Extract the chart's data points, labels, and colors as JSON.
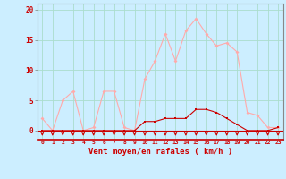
{
  "x": [
    0,
    1,
    2,
    3,
    4,
    5,
    6,
    7,
    8,
    9,
    10,
    11,
    12,
    13,
    14,
    15,
    16,
    17,
    18,
    19,
    20,
    21,
    22,
    23
  ],
  "rafales": [
    2,
    0,
    5,
    6.5,
    0,
    0.5,
    6.5,
    6.5,
    0.5,
    0,
    8.5,
    11.5,
    16,
    11.5,
    16.5,
    18.5,
    16,
    14,
    14.5,
    13,
    3,
    2.5,
    0.5,
    0.5
  ],
  "moyen": [
    0,
    0,
    0,
    0,
    0,
    0,
    0,
    0,
    0,
    0,
    1.5,
    1.5,
    2,
    2,
    2,
    3.5,
    3.5,
    3,
    2,
    1,
    0,
    0,
    0,
    0.5
  ],
  "color_rafales": "#ffaaaa",
  "color_moyen": "#cc0000",
  "bg_color": "#cceeff",
  "grid_color": "#aaddcc",
  "xlabel": "Vent moyen/en rafales ( km/h )",
  "yticks": [
    0,
    5,
    10,
    15,
    20
  ],
  "ylim": [
    -1.5,
    21
  ],
  "xlim": [
    -0.5,
    23.5
  ]
}
